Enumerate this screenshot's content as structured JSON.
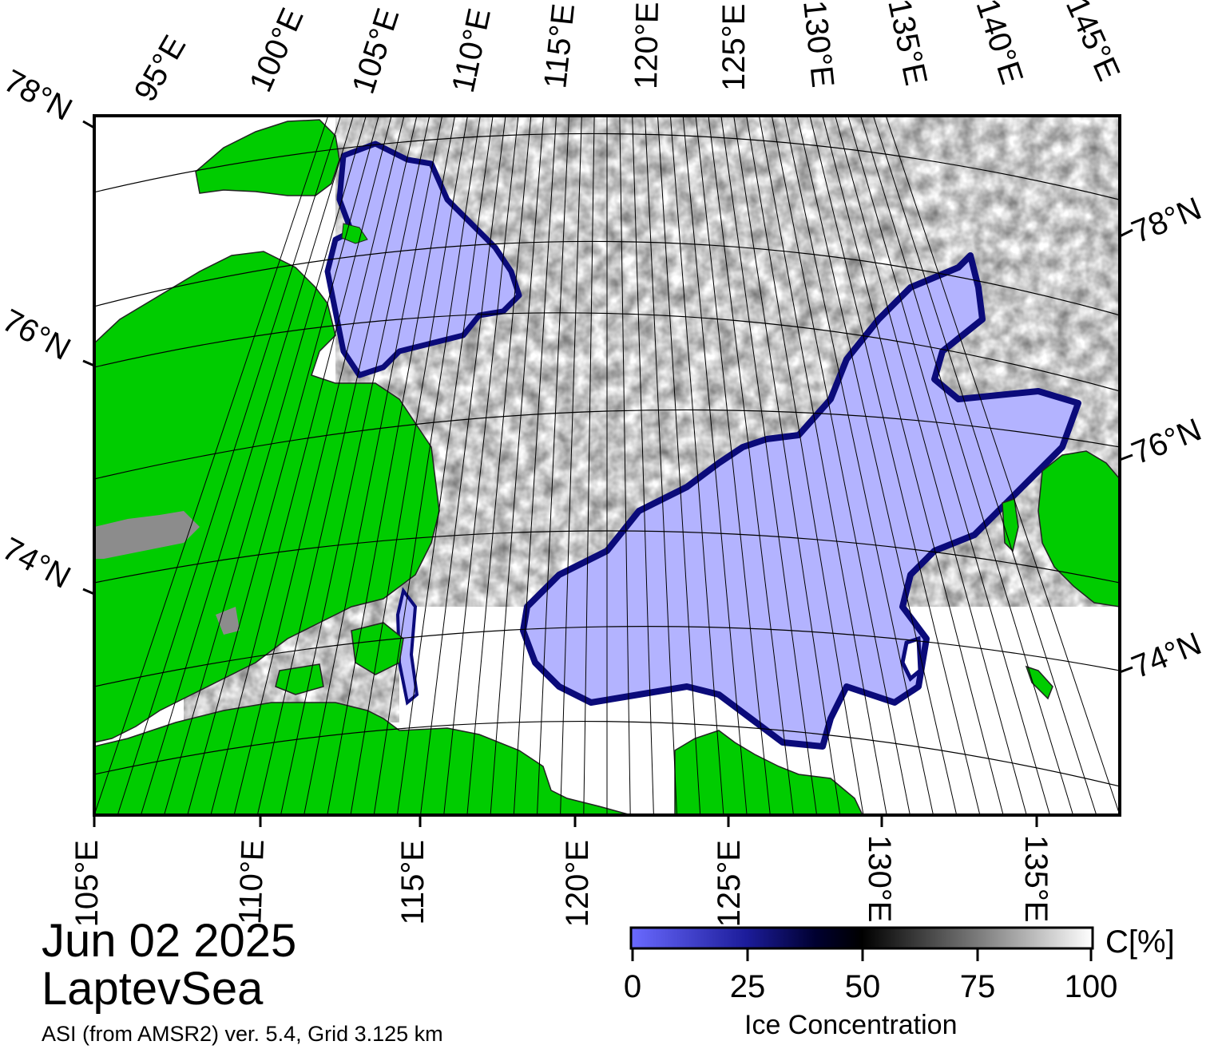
{
  "map": {
    "date": "Jun 02 2025",
    "region": "LaptevSea",
    "credit": "ASI (from AMSR2) ver. 5.4,  Grid 3.125 km",
    "top_lon_labels": [
      "95°E",
      "100°E",
      "105°E",
      "110°E",
      "115°E",
      "120°E",
      "125°E",
      "130°E",
      "135°E",
      "140°E",
      "145°E"
    ],
    "bottom_lon_labels": [
      "105°E",
      "110°E",
      "115°E",
      "120°E",
      "125°E",
      "130°E",
      "135°E"
    ],
    "left_lat_labels": [
      "78°N",
      "76°N",
      "74°N"
    ],
    "right_lat_labels": [
      "78°N",
      "76°N",
      "74°N"
    ],
    "colors": {
      "land": "#00cc00",
      "coast": "#222222",
      "open_water": "#b3b3ff",
      "ice_edge": "#0b0b7a",
      "gray_land": "#8c8c8c",
      "frame": "#000000"
    }
  },
  "colorbar": {
    "unit": "C[%]",
    "title": "Ice Concentration",
    "ticks": [
      "0",
      "25",
      "50",
      "75",
      "100"
    ],
    "min": 0,
    "max": 100,
    "stops": [
      {
        "value": 0,
        "color": "#6a6aff"
      },
      {
        "value": 25,
        "color": "#1c1c9a"
      },
      {
        "value": 40,
        "color": "#000030"
      },
      {
        "value": 50,
        "color": "#000000"
      },
      {
        "value": 75,
        "color": "#7a7a7a"
      },
      {
        "value": 100,
        "color": "#ffffff"
      }
    ]
  }
}
